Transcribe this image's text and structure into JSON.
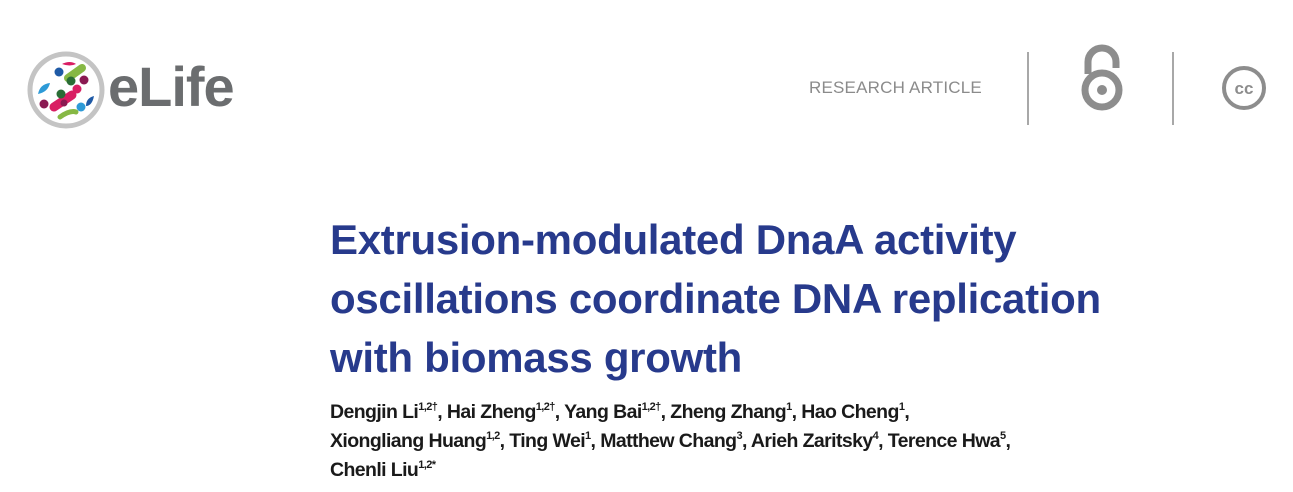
{
  "header": {
    "brand": "eLife",
    "article_type": "RESEARCH ARTICLE",
    "icons": [
      "elife-logo-icon",
      "open-access-icon",
      "creative-commons-icon"
    ]
  },
  "title_lines": [
    "Extrusion-modulated DnaA activity",
    "oscillations coordinate DNA replication",
    "with biomass growth"
  ],
  "authors": [
    {
      "name": "Dengjin Li",
      "sup": "1,2†",
      "sep": ", "
    },
    {
      "name": "Hai Zheng",
      "sup": "1,2†",
      "sep": ", "
    },
    {
      "name": "Yang Bai",
      "sup": "1,2†",
      "sep": ", "
    },
    {
      "name": "Zheng Zhang",
      "sup": "1",
      "sep": ", "
    },
    {
      "name": "Hao Cheng",
      "sup": "1",
      "sep": ", "
    },
    {
      "name": "Xiongliang Huang",
      "sup": "1,2",
      "sep": ", "
    },
    {
      "name": "Ting Wei",
      "sup": "1",
      "sep": ", "
    },
    {
      "name": "Matthew Chang",
      "sup": "3",
      "sep": ", "
    },
    {
      "name": "Arieh Zaritsky",
      "sup": "4",
      "sep": ", "
    },
    {
      "name": "Terence Hwa",
      "sup": "5",
      "sep": ", "
    },
    {
      "name": "Chenli Liu",
      "sup": "1,2*",
      "sep": ""
    }
  ],
  "colors": {
    "title": "#273a8c",
    "brand_gray": "#6b6d6f"
  }
}
